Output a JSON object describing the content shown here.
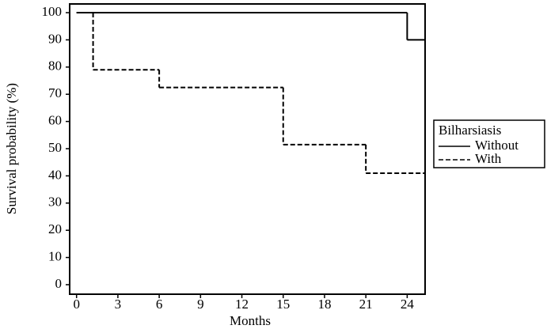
{
  "chart_data": {
    "type": "step",
    "x_label": "Months",
    "y_label": "Survival probability (%)",
    "xlim": [
      -0.5,
      25.3
    ],
    "xticks": [
      0,
      3,
      6,
      9,
      12,
      15,
      18,
      21,
      24
    ],
    "ylim": [
      -3.5,
      103.2
    ],
    "yticks": [
      0,
      10,
      20,
      30,
      40,
      50,
      60,
      70,
      80,
      90,
      100
    ],
    "legend": {
      "title": "Bilharsiasis",
      "position": "right"
    },
    "series": [
      {
        "name": "Without",
        "color": "#000000",
        "dash": "solid",
        "x": [
          0,
          24
        ],
        "values": [
          100,
          90
        ]
      },
      {
        "name": "With",
        "color": "#000000",
        "dash": "dashed",
        "x": [
          0,
          1.2,
          6,
          15,
          21
        ],
        "values": [
          100,
          79,
          72.5,
          51.5,
          41
        ]
      }
    ]
  }
}
